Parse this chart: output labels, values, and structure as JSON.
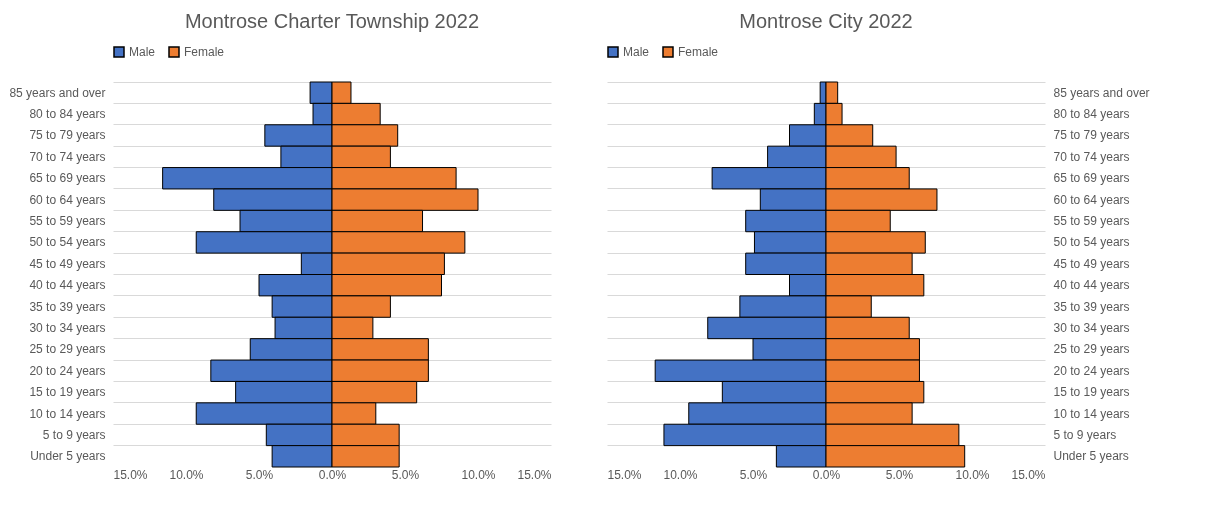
{
  "chart_data": [
    {
      "type": "bar",
      "orientation": "horizontal",
      "stacked": true,
      "title": "Montrose Charter Township 2022",
      "legend": "top",
      "grid": "y",
      "categories": [
        "85 years and over",
        "80 to 84 years",
        "75 to 79 years",
        "70 to 74 years",
        "65 to 69 years",
        "60 to 64 years",
        "55 to 59 years",
        "50 to 54 years",
        "45 to 49 years",
        "40 to 44 years",
        "35 to 39 years",
        "30 to 34 years",
        "25 to 29 years",
        "20 to 24 years",
        "15 to 19 years",
        "10 to 14 years",
        "5 to 9 years",
        "Under 5 years"
      ],
      "series": [
        {
          "name": "Male",
          "color": "#4472c4",
          "values": [
            -1.5,
            -1.3,
            -4.6,
            -3.5,
            -11.6,
            -8.1,
            -6.3,
            -9.3,
            -2.1,
            -5.0,
            -4.1,
            -3.9,
            -5.6,
            -8.3,
            -6.6,
            -9.3,
            -4.5,
            -4.1
          ]
        },
        {
          "name": "Female",
          "color": "#ed7d31",
          "values": [
            1.3,
            3.3,
            4.5,
            4.0,
            8.5,
            10.0,
            6.2,
            9.1,
            7.7,
            7.5,
            4.0,
            2.8,
            6.6,
            6.6,
            5.8,
            3.0,
            4.6,
            4.6
          ]
        }
      ],
      "xlim": [
        -15,
        15
      ],
      "xticks": [
        {
          "value": -15,
          "label": "15.0%"
        },
        {
          "value": -10,
          "label": "10.0%"
        },
        {
          "value": -5,
          "label": "5.0%"
        },
        {
          "value": 0,
          "label": "0.0%"
        },
        {
          "value": 5,
          "label": "5.0%"
        },
        {
          "value": 10,
          "label": "10.0%"
        },
        {
          "value": 15,
          "label": "15.0%"
        }
      ]
    },
    {
      "type": "bar",
      "orientation": "horizontal",
      "stacked": true,
      "title": "Montrose City 2022",
      "legend": "top",
      "grid": "y",
      "categories": [
        "85 years and over",
        "80 to 84 years",
        "75 to 79 years",
        "70 to 74 years",
        "65 to 69 years",
        "60 to 64 years",
        "55 to 59 years",
        "50 to 54 years",
        "45 to 49 years",
        "40 to 44 years",
        "35 to 39 years",
        "30 to 34 years",
        "25 to 29 years",
        "20 to 24 years",
        "15 to 19 years",
        "10 to 14 years",
        "5 to 9 years",
        "Under 5 years"
      ],
      "series": [
        {
          "name": "Male",
          "color": "#4472c4",
          "values": [
            -0.4,
            -0.8,
            -2.5,
            -4.0,
            -7.8,
            -4.5,
            -5.5,
            -4.9,
            -5.5,
            -2.5,
            -5.9,
            -8.1,
            -5.0,
            -11.7,
            -7.1,
            -9.4,
            -11.1,
            -3.4
          ]
        },
        {
          "name": "Female",
          "color": "#ed7d31",
          "values": [
            0.8,
            1.1,
            3.2,
            4.8,
            5.7,
            7.6,
            4.4,
            6.8,
            5.9,
            6.7,
            3.1,
            5.7,
            6.4,
            6.4,
            6.7,
            5.9,
            9.1,
            9.5
          ]
        }
      ],
      "xlim": [
        -15,
        15
      ],
      "xticks": [
        {
          "value": -15,
          "label": "15.0%"
        },
        {
          "value": -10,
          "label": "10.0%"
        },
        {
          "value": -5,
          "label": "5.0%"
        },
        {
          "value": 0,
          "label": "0.0%"
        },
        {
          "value": 5,
          "label": "5.0%"
        },
        {
          "value": 10,
          "label": "10.0%"
        },
        {
          "value": 15,
          "label": "15.0%"
        }
      ]
    }
  ]
}
